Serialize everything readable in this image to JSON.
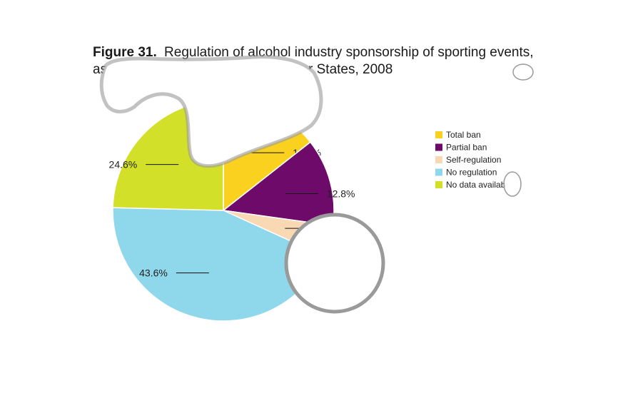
{
  "figure": {
    "title_bold": "Figure 31.",
    "title_rest": "Regulation of alcohol industry sponsorship of sporting events,",
    "title_line2": "as a percentage of all WHO Member States, 2008"
  },
  "chart_data": {
    "type": "pie",
    "title": "Figure 31. Regulation of alcohol industry sponsorship of sporting events, as a percentage of all WHO Member States, 2008",
    "units": "%",
    "slices": [
      {
        "name": "Total ban",
        "value": 14.4,
        "label": "14.4%",
        "color": "#fbd11f"
      },
      {
        "name": "Partial ban",
        "value": 12.8,
        "label": "12.8%",
        "color": "#6d0a6a"
      },
      {
        "name": "Self-regulation",
        "value": 4.6,
        "label": "4.6%",
        "color": "#f9d9b3"
      },
      {
        "name": "No regulation",
        "value": 43.6,
        "label": "43.6%",
        "color": "#8fd7ea"
      },
      {
        "name": "No data available",
        "value": 24.6,
        "label": "24.6%",
        "color": "#d2e02a"
      }
    ],
    "legend": {
      "placement": "right",
      "entries": [
        "Total ban",
        "Partial ban",
        "Self-regulation",
        "No regulation",
        "No data available"
      ]
    }
  }
}
